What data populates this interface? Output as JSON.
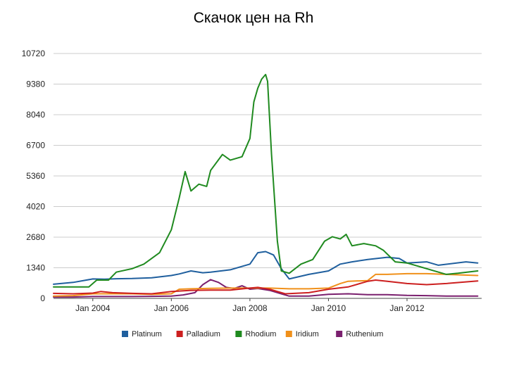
{
  "chart_data": {
    "type": "line",
    "title": "Скачок цен на Rh",
    "xlabel": "",
    "ylabel": "",
    "ylim": [
      0,
      10720
    ],
    "y_ticks": [
      0,
      1340,
      2680,
      4020,
      5360,
      6700,
      8040,
      9380,
      10720
    ],
    "y_tick_labels": [
      "0",
      "1340",
      "2680",
      "4020",
      "5360",
      "6700",
      "8040",
      "9380",
      "10720"
    ],
    "xlim": [
      2003.0,
      2013.9
    ],
    "x_ticks": [
      2004,
      2006,
      2008,
      2010,
      2012
    ],
    "x_tick_labels": [
      "Jan 2004",
      "Jan 2006",
      "Jan 2008",
      "Jan 2010",
      "Jan 2012"
    ],
    "grid": true,
    "legend_position": "bottom",
    "series": [
      {
        "name": "Platinum",
        "color": "#1f5f9e",
        "x": [
          2003.0,
          2003.5,
          2004.0,
          2004.3,
          2004.6,
          2005.0,
          2005.5,
          2006.0,
          2006.2,
          2006.5,
          2006.8,
          2007.0,
          2007.5,
          2008.0,
          2008.2,
          2008.4,
          2008.6,
          2008.8,
          2009.0,
          2009.5,
          2010.0,
          2010.3,
          2010.6,
          2011.0,
          2011.5,
          2011.8,
          2012.0,
          2012.5,
          2012.8,
          2013.5,
          2013.8
        ],
        "values": [
          620,
          700,
          850,
          840,
          860,
          870,
          900,
          1000,
          1070,
          1200,
          1120,
          1150,
          1250,
          1500,
          2000,
          2050,
          1900,
          1300,
          850,
          1050,
          1200,
          1500,
          1600,
          1700,
          1800,
          1750,
          1550,
          1600,
          1450,
          1600,
          1550
        ]
      },
      {
        "name": "Palladium",
        "color": "#cc1f1f",
        "x": [
          2003.0,
          2003.5,
          2004.0,
          2004.2,
          2004.5,
          2005.0,
          2005.5,
          2006.0,
          2006.5,
          2007.0,
          2007.5,
          2008.0,
          2008.2,
          2008.5,
          2008.9,
          2009.5,
          2010.0,
          2010.5,
          2011.0,
          2011.2,
          2011.5,
          2012.0,
          2012.5,
          2013.0,
          2013.8
        ],
        "values": [
          220,
          200,
          230,
          300,
          250,
          220,
          200,
          300,
          350,
          360,
          360,
          450,
          480,
          400,
          200,
          250,
          400,
          500,
          750,
          800,
          750,
          650,
          600,
          650,
          760
        ]
      },
      {
        "name": "Rhodium",
        "color": "#1f8a1f",
        "x": [
          2003.0,
          2003.3,
          2003.7,
          2003.9,
          2004.1,
          2004.4,
          2004.6,
          2005.0,
          2005.3,
          2005.7,
          2006.0,
          2006.2,
          2006.35,
          2006.5,
          2006.7,
          2006.9,
          2007.0,
          2007.3,
          2007.5,
          2007.8,
          2008.0,
          2008.1,
          2008.2,
          2008.3,
          2008.4,
          2008.45,
          2008.55,
          2008.7,
          2008.8,
          2009.0,
          2009.3,
          2009.6,
          2009.9,
          2010.1,
          2010.3,
          2010.45,
          2010.6,
          2010.9,
          2011.2,
          2011.4,
          2011.7,
          2012.0,
          2012.3,
          2012.6,
          2013.0,
          2013.3,
          2013.8
        ],
        "values": [
          500,
          500,
          500,
          500,
          800,
          800,
          1150,
          1300,
          1500,
          2000,
          3000,
          4400,
          5550,
          4700,
          5000,
          4900,
          5600,
          6300,
          6050,
          6200,
          7000,
          8600,
          9200,
          9600,
          9800,
          9500,
          6300,
          2500,
          1200,
          1100,
          1500,
          1700,
          2500,
          2700,
          2600,
          2800,
          2300,
          2400,
          2300,
          2100,
          1600,
          1550,
          1400,
          1250,
          1050,
          1100,
          1200
        ]
      },
      {
        "name": "Iridium",
        "color": "#f0901a",
        "x": [
          2003.0,
          2003.5,
          2004.0,
          2004.5,
          2005.0,
          2005.5,
          2006.0,
          2006.2,
          2006.5,
          2007.0,
          2007.5,
          2008.0,
          2008.5,
          2009.0,
          2009.5,
          2010.0,
          2010.3,
          2010.5,
          2011.0,
          2011.2,
          2011.5,
          2012.0,
          2012.5,
          2013.0,
          2013.8
        ],
        "values": [
          100,
          120,
          200,
          200,
          200,
          180,
          200,
          400,
          420,
          440,
          450,
          450,
          450,
          420,
          420,
          450,
          650,
          750,
          780,
          1050,
          1050,
          1080,
          1080,
          1050,
          1000
        ]
      },
      {
        "name": "Ruthenium",
        "color": "#7a1f6e",
        "x": [
          2003.0,
          2003.5,
          2004.0,
          2004.5,
          2005.0,
          2005.5,
          2006.0,
          2006.3,
          2006.6,
          2006.8,
          2007.0,
          2007.2,
          2007.4,
          2007.6,
          2007.8,
          2008.0,
          2008.2,
          2008.5,
          2008.8,
          2009.0,
          2009.5,
          2010.0,
          2010.5,
          2011.0,
          2011.5,
          2012.0,
          2012.5,
          2013.0,
          2013.8
        ],
        "values": [
          60,
          60,
          80,
          80,
          80,
          90,
          100,
          150,
          250,
          600,
          820,
          700,
          480,
          430,
          550,
          400,
          430,
          350,
          200,
          100,
          100,
          180,
          200,
          160,
          160,
          130,
          120,
          100,
          100
        ]
      }
    ]
  }
}
